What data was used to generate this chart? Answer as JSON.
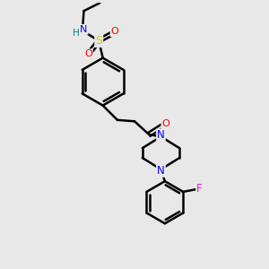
{
  "bg_color": "#e8e8e8",
  "bond_color": "#000000",
  "line_width": 1.8,
  "atom_colors": {
    "N": "#0000ff",
    "H": "#008080",
    "S": "#cccc00",
    "O": "#ff0000",
    "F": "#ff00ff",
    "C": "#000000"
  },
  "figsize": [
    3.0,
    3.0
  ],
  "dpi": 100,
  "xlim": [
    0,
    10
  ],
  "ylim": [
    0,
    10
  ]
}
